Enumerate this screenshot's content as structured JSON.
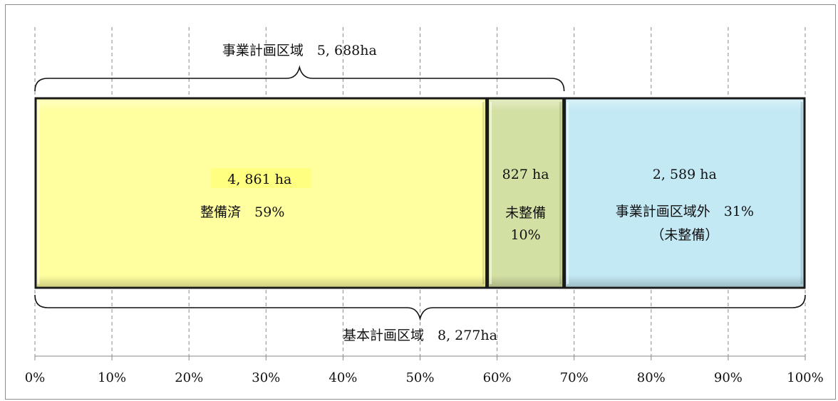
{
  "chart_data": {
    "type": "bar",
    "orientation": "horizontal-stacked",
    "x_ticks": [
      "0%",
      "10%",
      "20%",
      "30%",
      "40%",
      "50%",
      "60%",
      "70%",
      "80%",
      "90%",
      "100%"
    ],
    "xlim": [
      0,
      100
    ],
    "grid": true,
    "segments": [
      {
        "value_ha": "4, 861 ha",
        "label": "整備済　59%",
        "percent": 58.7,
        "color": "#ffffa0"
      },
      {
        "value_ha": "827 ha",
        "label": "未整備",
        "label2": "10%",
        "percent": 10.0,
        "color": "#d3e0a3"
      },
      {
        "value_ha": "2, 589 ha",
        "label": "事業計画区域外　31%",
        "label2": "（未整備）",
        "percent": 31.3,
        "color": "#c3e9f5"
      }
    ],
    "brace_top": {
      "label": "事業計画区域　5, 688ha",
      "from": 0,
      "to": 68.7
    },
    "brace_bottom": {
      "label": "基本計画区域　8, 277ha",
      "from": 0,
      "to": 100
    }
  }
}
